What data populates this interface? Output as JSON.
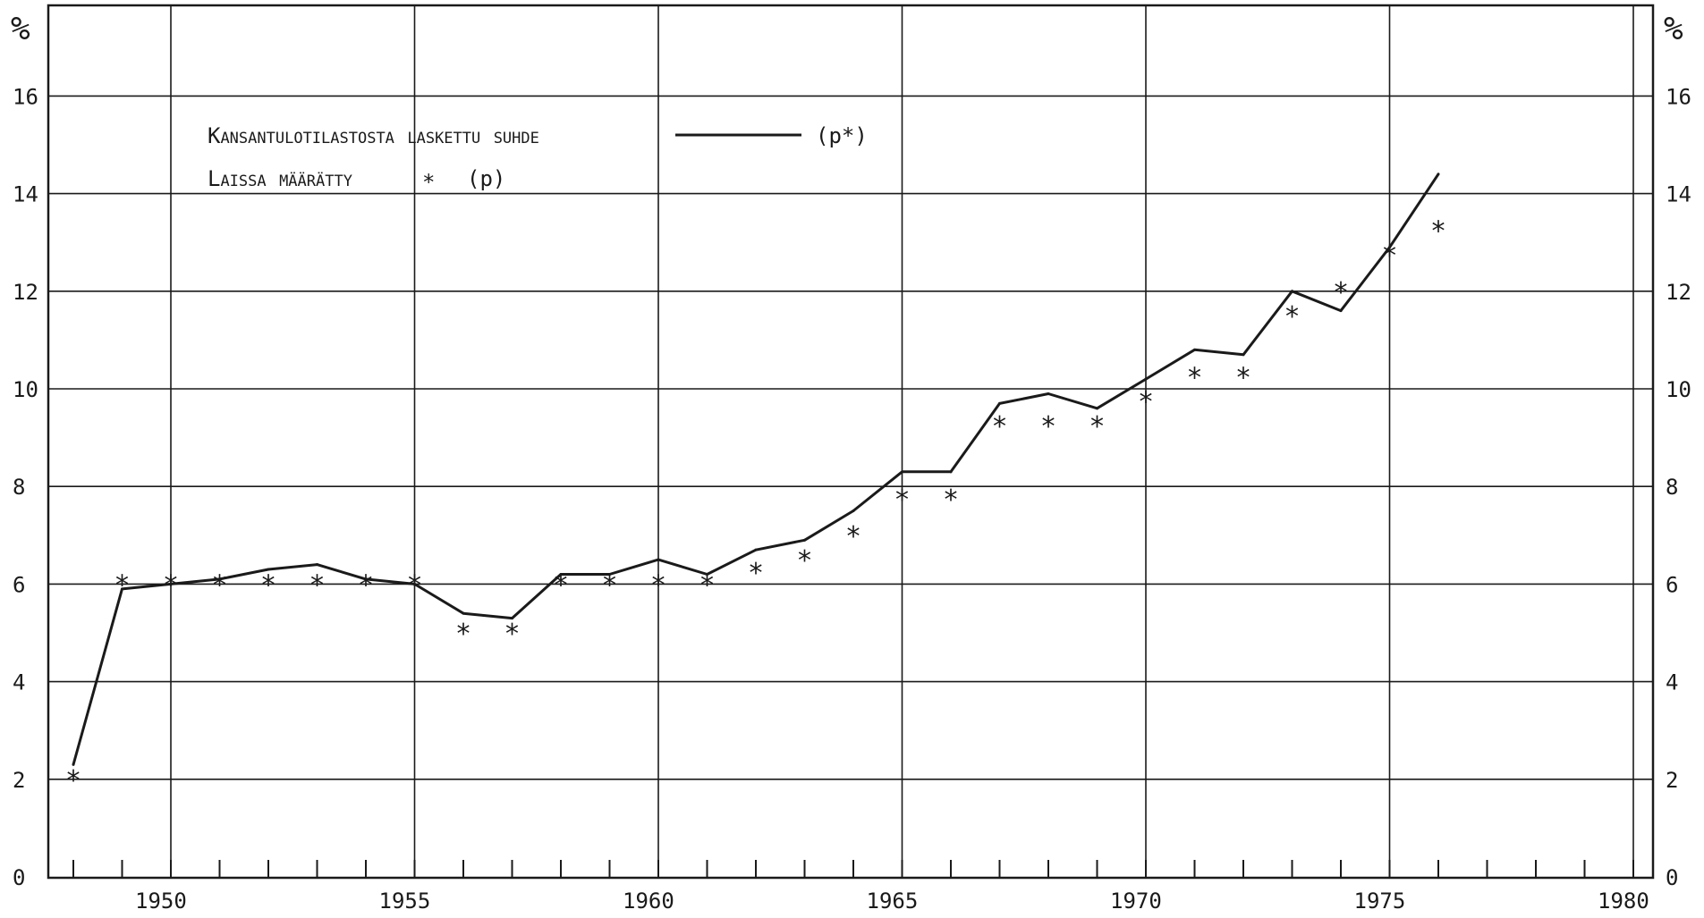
{
  "chart_data": {
    "type": "line",
    "title": "",
    "xlabel": "",
    "ylabel": "%",
    "y_unit_label_left": "%",
    "y_unit_label_right": "%",
    "xlim": [
      1948,
      1980.5
    ],
    "ylim": [
      0,
      17.5
    ],
    "x_ticks": [
      1950,
      1955,
      1960,
      1965,
      1970,
      1975,
      1980
    ],
    "y_ticks": [
      0,
      2,
      4,
      6,
      8,
      10,
      12,
      14,
      16
    ],
    "grid": true,
    "legend": {
      "placement": "top-left",
      "line_label": "Kansantulotilastosta laskettu suhde",
      "line_symbol": "(p*)",
      "marker_label": "Laissa määrätty",
      "marker_glyph": "*",
      "marker_symbol": "(p)"
    },
    "series": [
      {
        "name": "Kansantulotilastosta laskettu suhde (p*)",
        "style": "line",
        "color": "#1a1a1a",
        "x": [
          1948,
          1949,
          1950,
          1951,
          1952,
          1953,
          1954,
          1955,
          1956,
          1957,
          1958,
          1959,
          1960,
          1961,
          1962,
          1963,
          1964,
          1965,
          1966,
          1967,
          1968,
          1969,
          1970,
          1971,
          1972,
          1973,
          1974,
          1975,
          1976
        ],
        "y": [
          2.3,
          5.9,
          6.0,
          6.1,
          6.3,
          6.4,
          6.1,
          6.0,
          5.4,
          5.3,
          6.2,
          6.2,
          6.5,
          6.2,
          6.7,
          6.9,
          7.5,
          8.3,
          8.3,
          9.7,
          9.9,
          9.6,
          10.2,
          10.8,
          10.7,
          12.0,
          11.6,
          12.9,
          14.4
        ]
      },
      {
        "name": "Laissa määrätty (p)",
        "style": "marker",
        "marker": "*",
        "color": "#1a1a1a",
        "x": [
          1948,
          1949,
          1950,
          1951,
          1952,
          1953,
          1954,
          1955,
          1956,
          1957,
          1958,
          1959,
          1960,
          1961,
          1962,
          1963,
          1964,
          1965,
          1966,
          1967,
          1968,
          1969,
          1970,
          1971,
          1972,
          1973,
          1974,
          1975,
          1976
        ],
        "y": [
          2.0,
          6.0,
          6.0,
          6.0,
          6.0,
          6.0,
          6.0,
          6.0,
          5.0,
          5.0,
          6.0,
          6.0,
          6.0,
          6.0,
          6.25,
          6.5,
          7.0,
          7.75,
          7.75,
          9.25,
          9.25,
          9.25,
          9.75,
          10.25,
          10.25,
          11.5,
          12.0,
          12.75,
          13.25
        ]
      }
    ]
  }
}
